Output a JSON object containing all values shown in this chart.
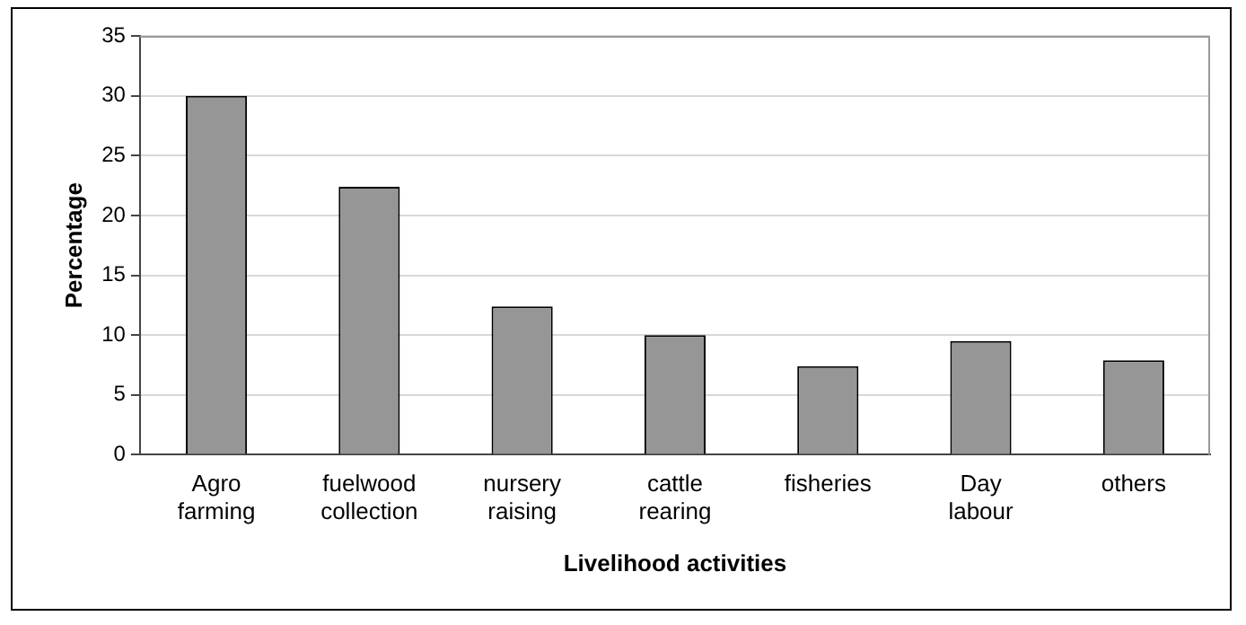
{
  "chart_data": {
    "type": "bar",
    "xlabel": "Livelihood activities",
    "ylabel": "Percentage",
    "categories": [
      "Agro farming",
      "fuelwood collection",
      "nursery raising",
      "cattle rearing",
      "fisheries",
      "Day labour",
      "others"
    ],
    "values": [
      30,
      22.4,
      12.4,
      10,
      7.4,
      9.5,
      7.9
    ],
    "color": "#969696",
    "ylim": [
      0,
      35
    ],
    "yticks": [
      0,
      5,
      10,
      15,
      20,
      25,
      30,
      35
    ],
    "grid": "y",
    "legend": false
  }
}
